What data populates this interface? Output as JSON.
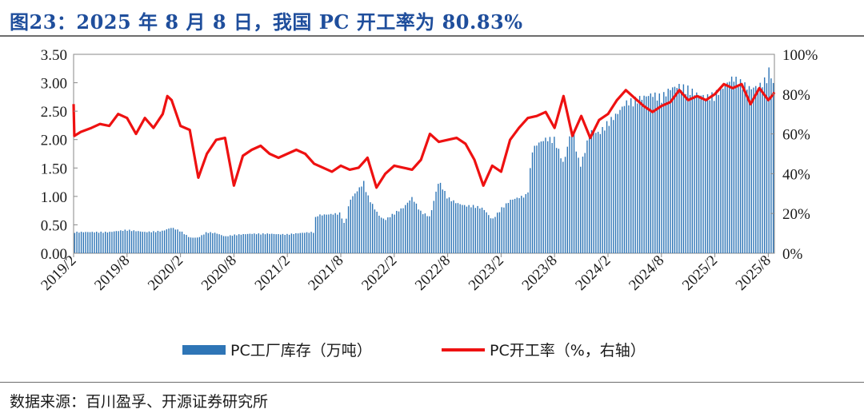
{
  "title": "图23：2025 年 8 月 8 日，我国 PC 开工率为 80.83%",
  "source": "数据来源：百川盈孚、开源证券研究所",
  "chart_data": {
    "type": "bar+line",
    "series": [
      {
        "name": "PC工厂库存（万吨）",
        "kind": "bar",
        "axis": "left",
        "color": "#2e75b6",
        "points": [
          [
            2019.083,
            0.38
          ],
          [
            2019.25,
            0.38
          ],
          [
            2019.417,
            0.38
          ],
          [
            2019.583,
            0.42
          ],
          [
            2019.75,
            0.38
          ],
          [
            2019.917,
            0.4
          ],
          [
            2020.0,
            0.46
          ],
          [
            2020.083,
            0.4
          ],
          [
            2020.17,
            0.28
          ],
          [
            2020.25,
            0.28
          ],
          [
            2020.33,
            0.38
          ],
          [
            2020.417,
            0.36
          ],
          [
            2020.5,
            0.3
          ],
          [
            2020.583,
            0.33
          ],
          [
            2020.75,
            0.35
          ],
          [
            2020.917,
            0.35
          ],
          [
            2021.0,
            0.34
          ],
          [
            2021.083,
            0.34
          ],
          [
            2021.25,
            0.37
          ],
          [
            2021.33,
            0.38
          ],
          [
            2021.35,
            0.68
          ],
          [
            2021.5,
            0.7
          ],
          [
            2021.58,
            0.72
          ],
          [
            2021.62,
            0.5
          ],
          [
            2021.667,
            0.95
          ],
          [
            2021.75,
            1.15
          ],
          [
            2021.8,
            1.28
          ],
          [
            2021.83,
            1.05
          ],
          [
            2021.9,
            0.8
          ],
          [
            2021.95,
            0.65
          ],
          [
            2022.0,
            0.6
          ],
          [
            2022.083,
            0.72
          ],
          [
            2022.17,
            0.82
          ],
          [
            2022.25,
            1.0
          ],
          [
            2022.33,
            0.75
          ],
          [
            2022.417,
            0.65
          ],
          [
            2022.5,
            1.3
          ],
          [
            2022.583,
            1.0
          ],
          [
            2022.667,
            0.9
          ],
          [
            2022.75,
            0.85
          ],
          [
            2022.833,
            0.85
          ],
          [
            2022.917,
            0.8
          ],
          [
            2023.0,
            0.6
          ],
          [
            2023.083,
            0.8
          ],
          [
            2023.17,
            0.95
          ],
          [
            2023.25,
            1.0
          ],
          [
            2023.33,
            1.05
          ],
          [
            2023.375,
            1.85
          ],
          [
            2023.417,
            1.95
          ],
          [
            2023.5,
            2.05
          ],
          [
            2023.583,
            2.05
          ],
          [
            2023.667,
            1.6
          ],
          [
            2023.75,
            2.3
          ],
          [
            2023.8,
            1.7
          ],
          [
            2023.833,
            1.6
          ],
          [
            2023.917,
            2.2
          ],
          [
            2024.0,
            2.15
          ],
          [
            2024.083,
            2.35
          ],
          [
            2024.17,
            2.5
          ],
          [
            2024.25,
            2.7
          ],
          [
            2024.333,
            2.75
          ],
          [
            2024.417,
            2.8
          ],
          [
            2024.5,
            2.85
          ],
          [
            2024.583,
            2.8
          ],
          [
            2024.667,
            2.95
          ],
          [
            2024.75,
            3.0
          ],
          [
            2024.833,
            2.95
          ],
          [
            2024.917,
            2.85
          ],
          [
            2025.0,
            2.8
          ],
          [
            2025.083,
            2.85
          ],
          [
            2025.17,
            3.0
          ],
          [
            2025.25,
            3.15
          ],
          [
            2025.333,
            3.05
          ],
          [
            2025.417,
            2.95
          ],
          [
            2025.5,
            3.0
          ],
          [
            2025.55,
            3.1
          ],
          [
            2025.6,
            3.32
          ],
          [
            2025.64,
            2.9
          ]
        ]
      },
      {
        "name": "PC开工率（%，右轴）",
        "kind": "line",
        "axis": "right",
        "color": "#ee1111",
        "points": [
          [
            2019.083,
            75
          ],
          [
            2019.09,
            59
          ],
          [
            2019.15,
            61
          ],
          [
            2019.25,
            63
          ],
          [
            2019.33,
            65
          ],
          [
            2019.417,
            64
          ],
          [
            2019.5,
            70
          ],
          [
            2019.583,
            68
          ],
          [
            2019.667,
            60
          ],
          [
            2019.75,
            68
          ],
          [
            2019.83,
            63
          ],
          [
            2019.917,
            70
          ],
          [
            2019.96,
            79
          ],
          [
            2020.0,
            77
          ],
          [
            2020.083,
            64
          ],
          [
            2020.17,
            62
          ],
          [
            2020.25,
            38
          ],
          [
            2020.33,
            50
          ],
          [
            2020.417,
            57
          ],
          [
            2020.5,
            58
          ],
          [
            2020.583,
            34
          ],
          [
            2020.667,
            49
          ],
          [
            2020.75,
            52
          ],
          [
            2020.833,
            54
          ],
          [
            2020.917,
            50
          ],
          [
            2021.0,
            48
          ],
          [
            2021.083,
            50
          ],
          [
            2021.167,
            52
          ],
          [
            2021.25,
            50
          ],
          [
            2021.333,
            45
          ],
          [
            2021.417,
            43
          ],
          [
            2021.5,
            41
          ],
          [
            2021.583,
            44
          ],
          [
            2021.667,
            42
          ],
          [
            2021.75,
            43
          ],
          [
            2021.833,
            48
          ],
          [
            2021.917,
            33
          ],
          [
            2022.0,
            40
          ],
          [
            2022.083,
            44
          ],
          [
            2022.167,
            43
          ],
          [
            2022.25,
            42
          ],
          [
            2022.333,
            47
          ],
          [
            2022.417,
            60
          ],
          [
            2022.5,
            56
          ],
          [
            2022.583,
            57
          ],
          [
            2022.667,
            58
          ],
          [
            2022.75,
            55
          ],
          [
            2022.833,
            47
          ],
          [
            2022.917,
            34
          ],
          [
            2023.0,
            44
          ],
          [
            2023.083,
            41
          ],
          [
            2023.167,
            57
          ],
          [
            2023.25,
            63
          ],
          [
            2023.333,
            68
          ],
          [
            2023.417,
            69
          ],
          [
            2023.5,
            71
          ],
          [
            2023.583,
            63
          ],
          [
            2023.667,
            79
          ],
          [
            2023.75,
            59
          ],
          [
            2023.833,
            69
          ],
          [
            2023.917,
            58
          ],
          [
            2024.0,
            67
          ],
          [
            2024.083,
            70
          ],
          [
            2024.167,
            77
          ],
          [
            2024.25,
            82
          ],
          [
            2024.333,
            78
          ],
          [
            2024.417,
            74
          ],
          [
            2024.5,
            71
          ],
          [
            2024.583,
            74
          ],
          [
            2024.667,
            76
          ],
          [
            2024.75,
            82
          ],
          [
            2024.833,
            77
          ],
          [
            2024.917,
            79
          ],
          [
            2025.0,
            77
          ],
          [
            2025.083,
            80
          ],
          [
            2025.167,
            85
          ],
          [
            2025.25,
            83
          ],
          [
            2025.333,
            85
          ],
          [
            2025.417,
            75
          ],
          [
            2025.5,
            83
          ],
          [
            2025.583,
            77
          ],
          [
            2025.6,
            78
          ],
          [
            2025.64,
            80.83
          ]
        ]
      }
    ],
    "x_tick_labels": [
      "2019/2",
      "2019/8",
      "2020/2",
      "2020/8",
      "2021/2",
      "2021/8",
      "2022/2",
      "2022/8",
      "2023/2",
      "2023/8",
      "2024/2",
      "2024/8",
      "2025/2",
      "2025/8"
    ],
    "x_tick_values": [
      2019.083,
      2019.583,
      2020.083,
      2020.583,
      2021.083,
      2021.583,
      2022.083,
      2022.583,
      2023.083,
      2023.583,
      2024.083,
      2024.583,
      2025.083,
      2025.583
    ],
    "xlim": [
      2019.083,
      2025.64
    ],
    "y_left_ticks": [
      "0.00",
      "0.50",
      "1.00",
      "1.50",
      "2.00",
      "2.50",
      "3.00",
      "3.50"
    ],
    "y_left_lim": [
      0,
      3.5
    ],
    "y_right_ticks": [
      "0%",
      "20%",
      "40%",
      "60%",
      "80%",
      "100%"
    ],
    "y_right_lim": [
      0,
      100
    ],
    "legend_position": "bottom-center",
    "grid": false
  }
}
